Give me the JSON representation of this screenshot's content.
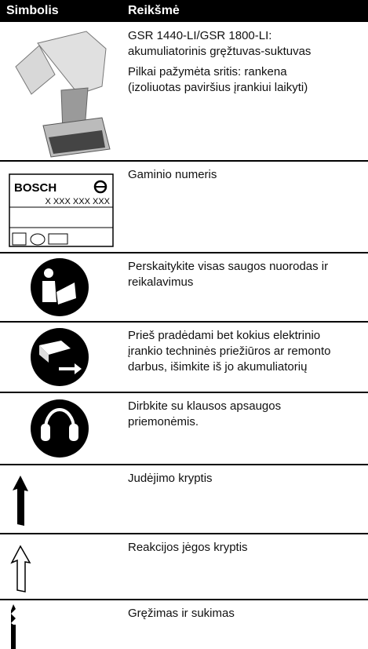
{
  "header": {
    "columns": [
      "Simbolis",
      "Reikšmė"
    ]
  },
  "rows": [
    {
      "description": [
        [
          "GSR 1440-LI/GSR 1800-LI:",
          "akumuliatorinis gręžtuvas-suktuvas"
        ],
        [
          "Pilkai pažymėta sritis: rankena",
          "(izoliuotas paviršius įrankiui laikyti)"
        ]
      ]
    },
    {
      "symbol_text": [
        "BOSCH",
        "X XXX XXX XXX"
      ],
      "description": [
        [
          "Gaminio numeris"
        ]
      ]
    },
    {
      "description": [
        [
          "Perskaitykite visas saugos nuorodas ir",
          "reikalavimus"
        ]
      ]
    },
    {
      "description": [
        [
          "Prieš pradėdami bet kokius elektrinio",
          "įrankio techninės priežiūros ar remonto",
          "darbus, išimkite iš jo akumuliatorių"
        ]
      ]
    },
    {
      "description": [
        [
          "Dirbkite su klausos apsaugos",
          "priemonėmis."
        ]
      ]
    },
    {
      "description": [
        [
          "Judėjimo kryptis"
        ]
      ]
    },
    {
      "description": [
        [
          "Reakcijos jėgos kryptis"
        ]
      ]
    },
    {
      "description": [
        [
          "Gręžimas ir sukimas"
        ]
      ]
    }
  ]
}
